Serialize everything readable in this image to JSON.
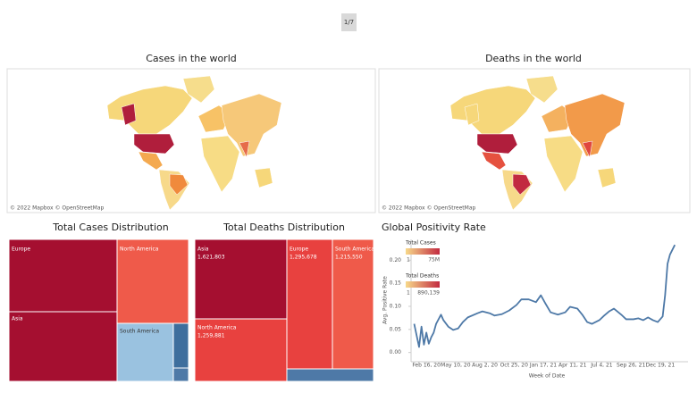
{
  "pager": "1/7",
  "maps": [
    {
      "title": "Cases in the world",
      "attribution": "© 2022 Mapbox © OpenStreetMap"
    },
    {
      "title": "Deaths in the world",
      "attribution": "© 2022 Mapbox © OpenStreetMap"
    }
  ],
  "treemaps": [
    {
      "title": "Total Cases Distribution",
      "cells": [
        {
          "label": "Europe"
        },
        {
          "label": "Asia"
        },
        {
          "label": "North America"
        },
        {
          "label": "South America"
        }
      ]
    },
    {
      "title": "Total Deaths Distribution",
      "cells": [
        {
          "label": "Asia",
          "value": "1,621,803"
        },
        {
          "label": "North America",
          "value": "1,259,881"
        },
        {
          "label": "Europe",
          "value": "1,295,678"
        },
        {
          "label": "South America",
          "value": "1,215,550"
        }
      ]
    }
  ],
  "color_legends": [
    {
      "title": "Total Cases",
      "min": "1",
      "max": "75M",
      "colors": [
        "#f7d98a",
        "#c22a40"
      ]
    },
    {
      "title": "Total Deaths",
      "min": "1",
      "max": "890,139",
      "colors": [
        "#f7d98a",
        "#c22a40"
      ]
    }
  ],
  "chart_data": {
    "type": "line",
    "title": "Global Positivity Rate",
    "x_label": "Week of Date",
    "y_label": "Avg. Positive Rate",
    "color": "#4e79a7",
    "x": [
      "2020-01-12",
      "2020-01-26",
      "2020-02-02",
      "2020-02-09",
      "2020-02-16",
      "2020-02-23",
      "2020-03-01",
      "2020-03-08",
      "2020-03-15",
      "2020-03-29",
      "2020-04-05",
      "2020-04-19",
      "2020-05-03",
      "2020-05-17",
      "2020-05-31",
      "2020-06-14",
      "2020-07-12",
      "2020-07-26",
      "2020-08-16",
      "2020-08-30",
      "2020-09-20",
      "2020-10-11",
      "2020-11-01",
      "2020-11-15",
      "2020-12-06",
      "2020-12-27",
      "2021-01-10",
      "2021-01-24",
      "2021-02-07",
      "2021-02-28",
      "2021-03-21",
      "2021-04-04",
      "2021-04-25",
      "2021-05-09",
      "2021-05-23",
      "2021-06-06",
      "2021-06-27",
      "2021-07-11",
      "2021-07-25",
      "2021-08-08",
      "2021-08-29",
      "2021-09-12",
      "2021-10-03",
      "2021-10-17",
      "2021-10-31",
      "2021-11-14",
      "2021-11-28",
      "2021-12-12",
      "2021-12-26",
      "2022-01-02",
      "2022-01-09",
      "2022-01-16",
      "2022-01-30"
    ],
    "values": [
      0.062,
      0.012,
      0.056,
      0.017,
      0.043,
      0.019,
      0.033,
      0.043,
      0.062,
      0.082,
      0.07,
      0.056,
      0.049,
      0.052,
      0.066,
      0.076,
      0.085,
      0.089,
      0.085,
      0.08,
      0.083,
      0.091,
      0.103,
      0.115,
      0.115,
      0.109,
      0.124,
      0.105,
      0.087,
      0.082,
      0.087,
      0.099,
      0.095,
      0.082,
      0.066,
      0.062,
      0.07,
      0.08,
      0.089,
      0.095,
      0.082,
      0.072,
      0.072,
      0.074,
      0.07,
      0.076,
      0.07,
      0.066,
      0.078,
      0.124,
      0.192,
      0.212,
      0.233
    ],
    "xlim": [
      "2020-01-03",
      "2022-03-09"
    ],
    "xticks": [
      {
        "value": "2020-02-16",
        "label": "Feb 16, 20"
      },
      {
        "value": "2020-05-10",
        "label": "May 10, 20"
      },
      {
        "value": "2020-08-02",
        "label": "Aug 2, 20"
      },
      {
        "value": "2020-10-25",
        "label": "Oct 25, 20"
      },
      {
        "value": "2021-01-17",
        "label": "Jan 17, 21"
      },
      {
        "value": "2021-04-11",
        "label": "Apr 11, 21"
      },
      {
        "value": "2021-07-04",
        "label": "Jul 4, 21"
      },
      {
        "value": "2021-09-26",
        "label": "Sep 26, 21"
      },
      {
        "value": "2021-12-19",
        "label": "Dec 19, 21"
      }
    ],
    "ylim": [
      -0.02,
      0.245
    ],
    "yticks": [
      {
        "value": 0,
        "label": "0.00"
      },
      {
        "value": 0.05,
        "label": "0.05"
      },
      {
        "value": 0.1,
        "label": "0.10"
      },
      {
        "value": 0.15,
        "label": "0.15"
      },
      {
        "value": 0.2,
        "label": "0.20"
      }
    ]
  }
}
